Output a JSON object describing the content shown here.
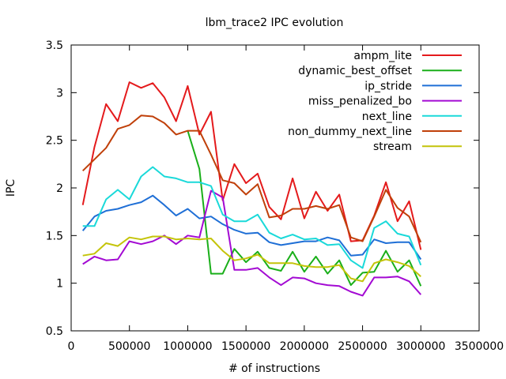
{
  "chart_data": {
    "type": "line",
    "title": "lbm_trace2 IPC evolution",
    "xlabel": "# of instructions",
    "ylabel": "IPC",
    "xlim": [
      0,
      3500000
    ],
    "ylim": [
      0.5,
      3.5
    ],
    "xticks": [
      0,
      500000,
      1000000,
      1500000,
      2000000,
      2500000,
      3000000,
      3500000
    ],
    "yticks": [
      0.5,
      1,
      1.5,
      2,
      2.5,
      3,
      3.5
    ],
    "grid": false,
    "legend_position": "top-right",
    "x": [
      100000,
      200000,
      300000,
      400000,
      500000,
      600000,
      700000,
      800000,
      900000,
      1000000,
      1100000,
      1200000,
      1300000,
      1400000,
      1500000,
      1600000,
      1700000,
      1800000,
      1900000,
      2000000,
      2100000,
      2200000,
      2300000,
      2400000,
      2500000,
      2600000,
      2700000,
      2800000,
      2900000,
      3000000
    ],
    "series": [
      {
        "name": "ampm_lite",
        "color": "#e41a1c",
        "values": [
          1.82,
          2.43,
          2.88,
          2.7,
          3.11,
          3.05,
          3.1,
          2.95,
          2.7,
          3.07,
          2.56,
          2.8,
          1.87,
          2.25,
          2.05,
          2.15,
          1.8,
          1.67,
          2.1,
          1.68,
          1.96,
          1.76,
          1.93,
          1.44,
          1.45,
          1.71,
          2.06,
          1.65,
          1.86,
          1.35
        ]
      },
      {
        "name": "dynamic_best_offset",
        "color": "#1aaf1a",
        "values": [
          null,
          null,
          null,
          null,
          null,
          null,
          null,
          null,
          null,
          2.6,
          2.2,
          1.1,
          1.1,
          1.36,
          1.22,
          1.33,
          1.16,
          1.13,
          1.33,
          1.12,
          1.28,
          1.1,
          1.24,
          0.98,
          1.11,
          1.12,
          1.34,
          1.12,
          1.24,
          0.97
        ]
      },
      {
        "name": "ip_stride",
        "color": "#1f6fd6",
        "values": [
          1.55,
          1.7,
          1.76,
          1.78,
          1.82,
          1.85,
          1.92,
          1.82,
          1.71,
          1.78,
          1.68,
          1.7,
          1.62,
          1.56,
          1.52,
          1.53,
          1.43,
          1.4,
          1.42,
          1.44,
          1.44,
          1.48,
          1.45,
          1.29,
          1.3,
          1.46,
          1.42,
          1.43,
          1.43,
          1.25
        ]
      },
      {
        "name": "miss_penalized_bo",
        "color": "#a30ad3",
        "values": [
          1.2,
          1.28,
          1.24,
          1.25,
          1.44,
          1.41,
          1.44,
          1.5,
          1.41,
          1.5,
          1.48,
          1.97,
          1.9,
          1.14,
          1.14,
          1.16,
          1.06,
          0.98,
          1.06,
          1.05,
          1.0,
          0.98,
          0.97,
          0.91,
          0.87,
          1.06,
          1.06,
          1.07,
          1.02,
          0.88
        ]
      },
      {
        "name": "next_line",
        "color": "#1ad9d9",
        "values": [
          1.6,
          1.6,
          1.88,
          1.98,
          1.88,
          2.12,
          2.22,
          2.12,
          2.1,
          2.06,
          2.06,
          2.02,
          1.72,
          1.65,
          1.65,
          1.72,
          1.53,
          1.47,
          1.51,
          1.46,
          1.47,
          1.4,
          1.41,
          1.24,
          1.16,
          1.58,
          1.65,
          1.52,
          1.49,
          1.19
        ]
      },
      {
        "name": "non_dummy_next_line",
        "color": "#c0400a",
        "values": [
          2.18,
          2.3,
          2.42,
          2.62,
          2.66,
          2.76,
          2.75,
          2.68,
          2.56,
          2.6,
          2.6,
          2.35,
          2.08,
          2.05,
          1.93,
          2.04,
          1.69,
          1.71,
          1.78,
          1.78,
          1.81,
          1.78,
          1.82,
          1.48,
          1.44,
          1.7,
          1.98,
          1.79,
          1.7,
          1.43
        ]
      },
      {
        "name": "stream",
        "color": "#c4c40a",
        "values": [
          1.29,
          1.31,
          1.42,
          1.39,
          1.48,
          1.46,
          1.49,
          1.49,
          1.46,
          1.47,
          1.46,
          1.47,
          1.34,
          1.24,
          1.26,
          1.3,
          1.21,
          1.21,
          1.21,
          1.18,
          1.17,
          1.17,
          1.19,
          1.05,
          1.02,
          1.21,
          1.25,
          1.22,
          1.18,
          1.07
        ]
      }
    ]
  }
}
